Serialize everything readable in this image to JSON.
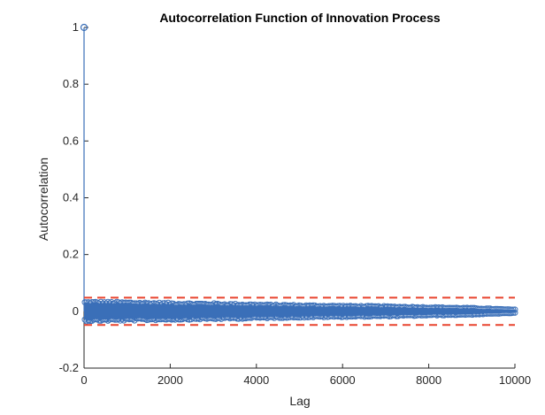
{
  "chart_data": {
    "type": "stem",
    "title": "Autocorrelation Function of Innovation Process",
    "xlabel": "Lag",
    "ylabel": "Autocorrelation",
    "xlim": [
      0,
      10000
    ],
    "ylim": [
      -0.2,
      1
    ],
    "xticks": [
      0,
      2000,
      4000,
      6000,
      8000,
      10000
    ],
    "xtick_labels": [
      "0",
      "2000",
      "4000",
      "6000",
      "8000",
      "10000"
    ],
    "yticks": [
      -0.2,
      0,
      0.2,
      0.4,
      0.6,
      0.8,
      1
    ],
    "ytick_labels": [
      "-0.2",
      "0",
      "0.2",
      "0.4",
      "0.6",
      "0.8",
      "1"
    ],
    "grid": false,
    "series": [
      {
        "color": "#3a6fb8",
        "marker": "circle",
        "lag0_value": 1,
        "envelope_summary": [
          {
            "lag": 0,
            "max_abs": 0.035
          },
          {
            "lag": 1000,
            "max_abs": 0.033
          },
          {
            "lag": 2000,
            "max_abs": 0.03
          },
          {
            "lag": 3000,
            "max_abs": 0.028
          },
          {
            "lag": 4000,
            "max_abs": 0.025
          },
          {
            "lag": 5000,
            "max_abs": 0.022
          },
          {
            "lag": 6000,
            "max_abs": 0.02
          },
          {
            "lag": 7000,
            "max_abs": 0.018
          },
          {
            "lag": 8000,
            "max_abs": 0.015
          },
          {
            "lag": 9000,
            "max_abs": 0.012
          },
          {
            "lag": 10000,
            "max_abs": 0.006
          }
        ]
      }
    ],
    "confidence_bounds": {
      "upper": 0.048,
      "lower": -0.048,
      "color": "#e8432e",
      "style": "dashed"
    }
  }
}
